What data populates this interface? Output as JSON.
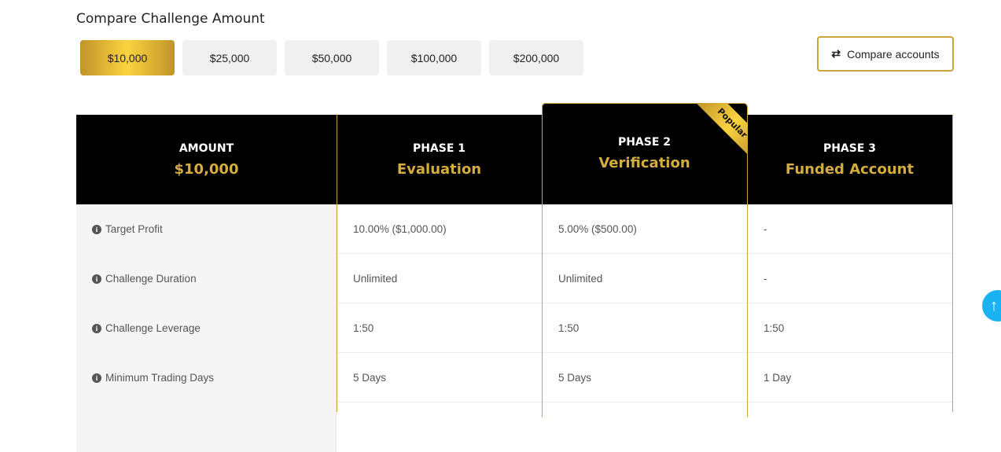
{
  "title": "Compare Challenge Amount",
  "amounts": [
    "$10,000",
    "$25,000",
    "$50,000",
    "$100,000",
    "$200,000"
  ],
  "selected_amount": "$10,000",
  "compare_button": "Compare accounts",
  "header": [
    {
      "key": "AMOUNT",
      "value": "$10,000"
    },
    {
      "key": "PHASE 1",
      "value": "Evaluation"
    },
    {
      "key": "PHASE 2",
      "value": "Verification"
    },
    {
      "key": "PHASE 3",
      "value": "Funded Account"
    }
  ],
  "badge": "Popular",
  "rows": [
    {
      "label": "Target Profit",
      "p1": "10.00% ($1,000.00)",
      "p2": "5.00% ($500.00)",
      "p3": "-"
    },
    {
      "label": "Challenge Duration",
      "p1": "Unlimited",
      "p2": "Unlimited",
      "p3": "-"
    },
    {
      "label": "Challenge Leverage",
      "p1": "1:50",
      "p2": "1:50",
      "p3": "1:50"
    },
    {
      "label": "Minimum Trading Days",
      "p1": "5 Days",
      "p2": "5 Days",
      "p3": "1 Day"
    }
  ],
  "colors": {
    "gold": "#d4ad3e",
    "accent_blue": "#1ab2f0"
  }
}
